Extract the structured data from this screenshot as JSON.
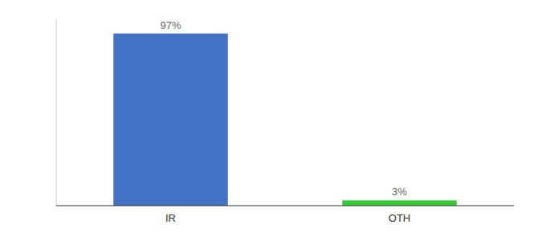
{
  "chart_data": {
    "type": "bar",
    "categories": [
      "IR",
      "OTH"
    ],
    "values": [
      97,
      3
    ],
    "value_labels": [
      "97%",
      "3%"
    ],
    "colors": [
      "#4472c4",
      "#33cc33"
    ],
    "ylim": [
      0,
      105
    ],
    "data_labels": true,
    "tick_labels": "x"
  }
}
